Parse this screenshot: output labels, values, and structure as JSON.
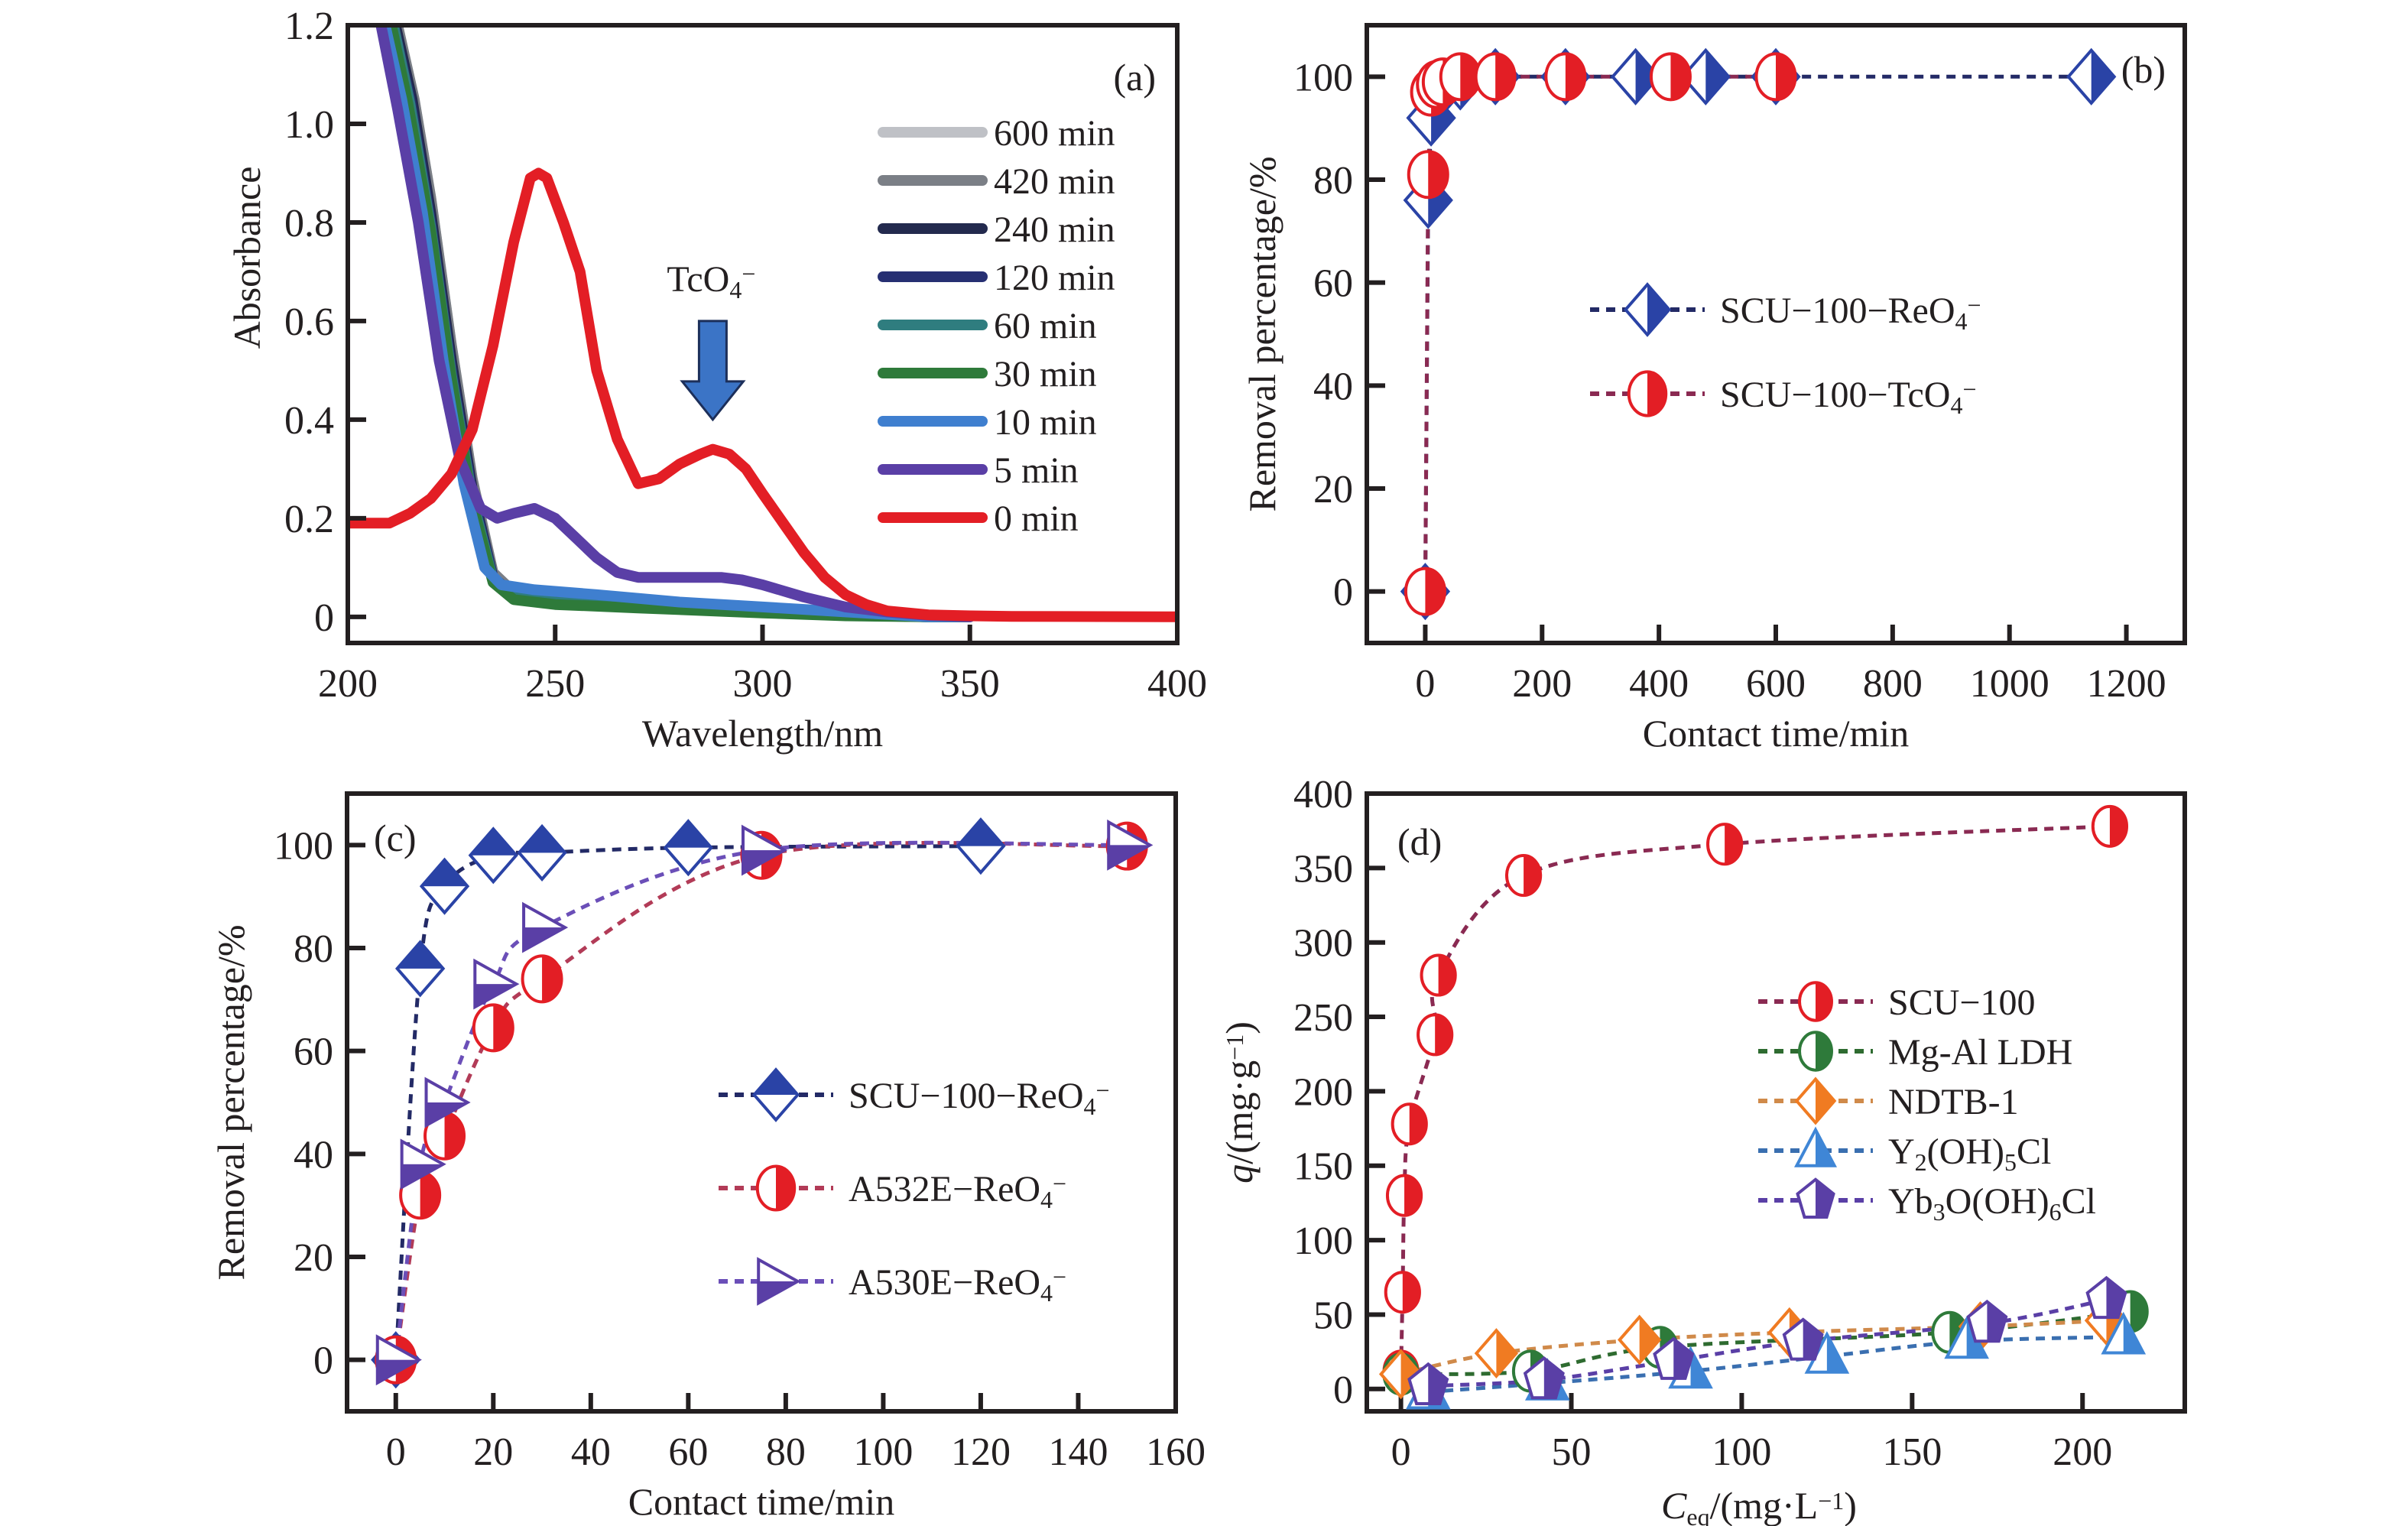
{
  "chart_data": [
    {
      "id": "a",
      "type": "line",
      "panel_label": "(a)",
      "title": "",
      "xlabel": "Wavelength/nm",
      "ylabel": "Absorbance",
      "xlim": [
        200,
        400
      ],
      "ylim": [
        -0.053,
        1.2
      ],
      "xticks": [
        200,
        250,
        300,
        350,
        400
      ],
      "yticks": [
        0,
        0.2,
        0.4,
        0.6,
        0.8,
        1.0,
        1.2
      ],
      "ytick_labels": [
        "0",
        "0.2",
        "0.4",
        "0.6",
        "0.8",
        "1.0",
        "1.2"
      ],
      "legend_position": "top-right",
      "annotation": {
        "text": "TcO",
        "sub": "4",
        "sup": "−",
        "arrow_x": 288,
        "arrow_y_top": 0.6,
        "arrow_y_bottom": 0.4
      },
      "series": [
        {
          "name": "600 min",
          "color": "#bfc1c6",
          "x": [
            212,
            216,
            220,
            225,
            230,
            235,
            240,
            250,
            270,
            300,
            320,
            340,
            350
          ],
          "y": [
            1.2,
            1.05,
            0.85,
            0.55,
            0.28,
            0.09,
            0.05,
            0.04,
            0.03,
            0.015,
            0.005,
            0.0,
            0.0
          ]
        },
        {
          "name": "420 min",
          "color": "#7b7f86",
          "x": [
            212,
            216,
            220,
            225,
            230,
            235,
            240,
            250,
            270,
            300,
            320,
            340,
            350
          ],
          "y": [
            1.2,
            1.05,
            0.85,
            0.55,
            0.28,
            0.09,
            0.05,
            0.04,
            0.03,
            0.015,
            0.005,
            0.0,
            0.0
          ]
        },
        {
          "name": "240 min",
          "color": "#232a4e",
          "x": [
            211.5,
            215.5,
            220,
            225,
            230,
            235,
            240,
            250,
            270,
            300,
            320,
            340,
            350
          ],
          "y": [
            1.2,
            1.05,
            0.82,
            0.52,
            0.26,
            0.08,
            0.045,
            0.035,
            0.025,
            0.012,
            0.004,
            0.0,
            0.0
          ]
        },
        {
          "name": "120 min",
          "color": "#262f72",
          "x": [
            211,
            215,
            220,
            225,
            230,
            235,
            240,
            250,
            270,
            300,
            320,
            340,
            350
          ],
          "y": [
            1.2,
            1.05,
            0.8,
            0.5,
            0.25,
            0.08,
            0.045,
            0.035,
            0.025,
            0.012,
            0.004,
            0.0,
            0.0
          ]
        },
        {
          "name": "60 min",
          "color": "#2f7d7f",
          "x": [
            211,
            215,
            220,
            225,
            230,
            235,
            240,
            250,
            270,
            300,
            320,
            340,
            350
          ],
          "y": [
            1.2,
            1.04,
            0.79,
            0.49,
            0.24,
            0.075,
            0.04,
            0.03,
            0.02,
            0.01,
            0.003,
            0.0,
            0.0
          ]
        },
        {
          "name": "30 min",
          "color": "#2e7a3a",
          "x": [
            210.5,
            214.5,
            220,
            225,
            230,
            235,
            240,
            250,
            270,
            300,
            320,
            340,
            350
          ],
          "y": [
            1.2,
            1.04,
            0.78,
            0.48,
            0.23,
            0.07,
            0.035,
            0.025,
            0.018,
            0.008,
            0.002,
            0.0,
            0.0
          ]
        },
        {
          "name": "10 min",
          "color": "#3f7fcf",
          "x": [
            209,
            213,
            218,
            223,
            228,
            233,
            237,
            245,
            260,
            280,
            300,
            320,
            340,
            350
          ],
          "y": [
            1.2,
            1.05,
            0.82,
            0.52,
            0.27,
            0.1,
            0.065,
            0.055,
            0.045,
            0.03,
            0.02,
            0.01,
            0.0,
            0.0
          ]
        },
        {
          "name": "5 min",
          "color": "#5a3fa6",
          "x": [
            208,
            212,
            217,
            222,
            227,
            232,
            236,
            240,
            245,
            250,
            255,
            260,
            265,
            270,
            280,
            290,
            295,
            300,
            310,
            320,
            330,
            340,
            350
          ],
          "y": [
            1.2,
            1.03,
            0.8,
            0.52,
            0.32,
            0.22,
            0.2,
            0.21,
            0.22,
            0.2,
            0.16,
            0.12,
            0.09,
            0.08,
            0.08,
            0.08,
            0.075,
            0.065,
            0.04,
            0.02,
            0.01,
            0.003,
            0.0
          ]
        },
        {
          "name": "0 min",
          "color": "#e31e25",
          "x": [
            200,
            205,
            210,
            215,
            220,
            225,
            230,
            235,
            240,
            244,
            246,
            248,
            252,
            256,
            260,
            265,
            270,
            275,
            280,
            285,
            288,
            292,
            296,
            300,
            305,
            310,
            315,
            320,
            325,
            330,
            340,
            350,
            360,
            400
          ],
          "y": [
            0.19,
            0.19,
            0.19,
            0.21,
            0.24,
            0.29,
            0.38,
            0.55,
            0.76,
            0.89,
            0.9,
            0.89,
            0.8,
            0.7,
            0.5,
            0.36,
            0.27,
            0.28,
            0.31,
            0.33,
            0.34,
            0.33,
            0.3,
            0.25,
            0.19,
            0.13,
            0.08,
            0.045,
            0.025,
            0.012,
            0.004,
            0.002,
            0.001,
            0.0
          ]
        }
      ]
    },
    {
      "id": "b",
      "type": "scatter",
      "panel_label": "(b)",
      "xlabel": "Contact time/min",
      "ylabel": "Removal percentage/%",
      "xlim": [
        -100,
        1300
      ],
      "ylim": [
        -10,
        110
      ],
      "xticks": [
        0,
        200,
        400,
        600,
        800,
        1000,
        1200
      ],
      "yticks": [
        0,
        20,
        40,
        60,
        80,
        100
      ],
      "legend_position": "center",
      "series": [
        {
          "name": "SCU−100−ReO",
          "sub": "4",
          "sup": "−",
          "marker": "diamond-half-right",
          "color": "#2a43a6",
          "line_color": "#232a66",
          "x": [
            0,
            5,
            10,
            30,
            60,
            120,
            240,
            360,
            480,
            600,
            1140
          ],
          "y": [
            0,
            76,
            92,
            98,
            99,
            100,
            100,
            100,
            100,
            100,
            100
          ]
        },
        {
          "name": "SCU−100−TcO",
          "sub": "4",
          "sup": "−",
          "marker": "circle-half-right",
          "color": "#e31e25",
          "line_color": "#8a2a52",
          "x": [
            0,
            5,
            10,
            20,
            30,
            60,
            120,
            240,
            420,
            600
          ],
          "y": [
            0,
            81,
            97,
            98.5,
            99,
            100,
            100,
            100,
            100,
            100
          ]
        }
      ]
    },
    {
      "id": "c",
      "type": "scatter",
      "panel_label": "(c)",
      "xlabel": "Contact time/min",
      "ylabel": "Removal percentage/%",
      "xlim": [
        -10,
        160
      ],
      "ylim": [
        -10,
        110
      ],
      "xticks": [
        0,
        20,
        40,
        60,
        80,
        100,
        120,
        140,
        160
      ],
      "yticks": [
        0,
        20,
        40,
        60,
        80,
        100
      ],
      "legend_position": "center-right",
      "series": [
        {
          "name": "SCU−100−ReO",
          "sub": "4",
          "sup": "−",
          "marker": "diamond-half-top",
          "color": "#2a43a6",
          "line_color": "#232a66",
          "x": [
            0,
            5,
            10,
            20,
            30,
            60,
            120
          ],
          "y": [
            0,
            76,
            92,
            98,
            98.5,
            99.5,
            99.8
          ]
        },
        {
          "name": "A532E−ReO",
          "sub": "4",
          "sup": "−",
          "marker": "circle-half-right",
          "color": "#e31e25",
          "line_color": "#b23b57",
          "x": [
            0,
            5,
            10,
            20,
            30,
            75,
            150
          ],
          "y": [
            0,
            32,
            43.5,
            64.5,
            74,
            98,
            99.8
          ]
        },
        {
          "name": "A530E−ReO",
          "sub": "4",
          "sup": "−",
          "marker": "triangle-right-half-bottom",
          "color": "#5a3fa6",
          "line_color": "#6b4fb8",
          "x": [
            0,
            5,
            10,
            20,
            30,
            75,
            150
          ],
          "y": [
            0,
            38,
            50,
            73,
            84,
            99,
            100
          ]
        }
      ]
    },
    {
      "id": "d",
      "type": "scatter",
      "panel_label": "(d)",
      "xlabel": "C",
      "xlabel_sub": "eq",
      "xlabel_rest": "/(mg·L",
      "xlabel_sup": "−1",
      "xlabel_end": ")",
      "ylabel": "q/(mg·g",
      "ylabel_sup": "−1",
      "ylabel_end": ")",
      "xlim": [
        -10,
        230
      ],
      "ylim": [
        -15,
        400
      ],
      "xticks": [
        0,
        50,
        100,
        150,
        200
      ],
      "yticks": [
        0,
        50,
        100,
        150,
        200,
        250,
        300,
        350,
        400
      ],
      "legend_position": "center-right",
      "series": [
        {
          "name": "SCU−100",
          "marker": "circle-half-right",
          "color": "#e31e25",
          "line_color": "#8a2a52",
          "x": [
            0,
            0.5,
            1,
            2.5,
            10,
            11,
            36,
            95,
            208
          ],
          "y": [
            12,
            65,
            130,
            178,
            238,
            278,
            345,
            366,
            378
          ]
        },
        {
          "name": "Mg-Al LDH",
          "marker": "circle-half-right",
          "color": "#2e7a3a",
          "line_color": "#2e6b30",
          "x": [
            0,
            38,
            76,
            161,
            214
          ],
          "y": [
            10,
            12,
            28,
            38,
            52
          ]
        },
        {
          "name": "NDTB-1",
          "marker": "diamond-half-right",
          "color": "#f07b22",
          "line_color": "#d08a4a",
          "x": [
            0,
            28,
            70,
            114,
            170,
            207
          ],
          "y": [
            10,
            24,
            33,
            38,
            42,
            46
          ]
        },
        {
          "name": "Y",
          "sub1": "2",
          "mid": "(OH)",
          "sub2": "5",
          "end": "Cl",
          "marker": "triangle-up-half-right",
          "color": "#3f86d6",
          "line_color": "#3a6fb0",
          "x": [
            8,
            43,
            85,
            125,
            166,
            212
          ],
          "y": [
            -2,
            4,
            12,
            22,
            32,
            35
          ]
        },
        {
          "name": "Yb",
          "sub1": "3",
          "mid": "O(OH)",
          "sub2": "6",
          "end": "Cl",
          "marker": "pentagon-half-right",
          "color": "#5a3fa6",
          "line_color": "#5a3fa6",
          "x": [
            8,
            42,
            80,
            118,
            172,
            207
          ],
          "y": [
            2,
            6,
            19,
            32,
            44,
            60
          ]
        }
      ]
    }
  ]
}
